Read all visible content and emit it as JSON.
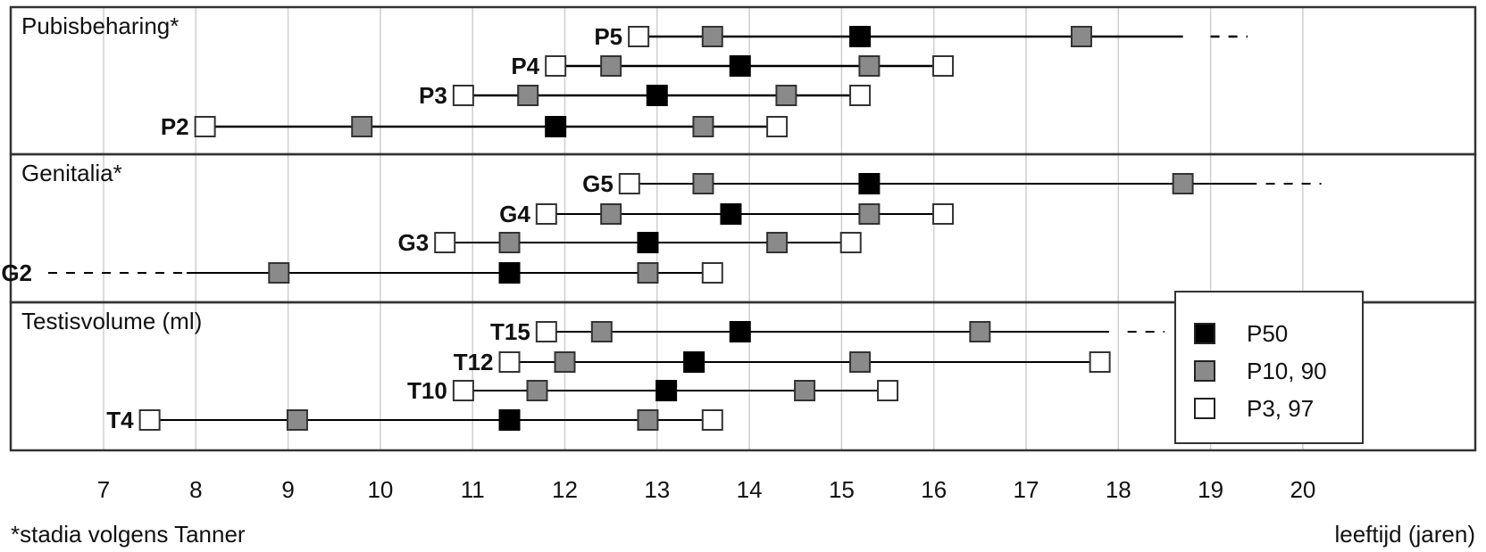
{
  "chart_data": {
    "type": "range-plot",
    "xlabel": "leeftijd (jaren)",
    "footnote": "*stadia volgens Tanner",
    "xlim": [
      6.1,
      20.9
    ],
    "xticks": [
      7,
      8,
      9,
      10,
      11,
      12,
      13,
      14,
      15,
      16,
      17,
      18,
      19,
      20
    ],
    "grid": true,
    "legend": {
      "placement": "right",
      "entries": [
        {
          "label": "P50",
          "marker": "p50"
        },
        {
          "label": "P10, 90",
          "marker": "p10_90"
        },
        {
          "label": "P3, 97",
          "marker": "p3_97"
        }
      ]
    },
    "colors": {
      "p50": "#000000",
      "p10_90": "#8a8a8a",
      "p3_97": "#ffffff",
      "line": "#000000",
      "grid": "#cfcfcf"
    },
    "panels": [
      {
        "title": "Pubisbeharing*",
        "rows": [
          {
            "label": "P5",
            "p3": 12.8,
            "p10": 13.6,
            "p50": 15.2,
            "p90": 17.6,
            "p97": null,
            "line_end": 18.7,
            "dash_start": 19.0,
            "dash_end": 19.4
          },
          {
            "label": "P4",
            "p3": 11.9,
            "p10": 12.5,
            "p50": 13.9,
            "p90": 15.3,
            "p97": 16.1
          },
          {
            "label": "P3",
            "p3": 10.9,
            "p10": 11.6,
            "p50": 13.0,
            "p90": 14.4,
            "p97": 15.2
          },
          {
            "label": "P2",
            "p3": 8.1,
            "p10": 9.8,
            "p50": 11.9,
            "p90": 13.5,
            "p97": 14.3
          }
        ]
      },
      {
        "title": "Genitalia*",
        "rows": [
          {
            "label": "G5",
            "p3": 12.7,
            "p10": 13.5,
            "p50": 15.3,
            "p90": 18.7,
            "p97": null,
            "line_end": 19.5,
            "dash_start": 19.6,
            "dash_end": 20.2
          },
          {
            "label": "G4",
            "p3": 11.8,
            "p10": 12.5,
            "p50": 13.8,
            "p90": 15.3,
            "p97": 16.1
          },
          {
            "label": "G3",
            "p3": 10.7,
            "p10": 11.4,
            "p50": 12.9,
            "p90": 14.3,
            "p97": 15.1
          },
          {
            "label": "G2",
            "p3": null,
            "p10": 8.9,
            "p50": 11.4,
            "p90": 12.9,
            "p97": 13.6,
            "line_start": 7.9,
            "dash_start": 6.4,
            "dash_end": 7.9
          }
        ]
      },
      {
        "title": "Testisvolume (ml)",
        "rows": [
          {
            "label": "T15",
            "p3": 11.8,
            "p10": 12.4,
            "p50": 13.9,
            "p90": 16.5,
            "p97": null,
            "line_end": 17.9,
            "dash_start": 18.1,
            "dash_end": 18.5
          },
          {
            "label": "T12",
            "p3": 11.4,
            "p10": 12.0,
            "p50": 13.4,
            "p90": 15.2,
            "p97": 17.8
          },
          {
            "label": "T10",
            "p3": 10.9,
            "p10": 11.7,
            "p50": 13.1,
            "p90": 14.6,
            "p97": 15.5
          },
          {
            "label": "T4",
            "p3": 7.5,
            "p10": 9.1,
            "p50": 11.4,
            "p90": 12.9,
            "p97": 13.6
          }
        ]
      }
    ]
  }
}
